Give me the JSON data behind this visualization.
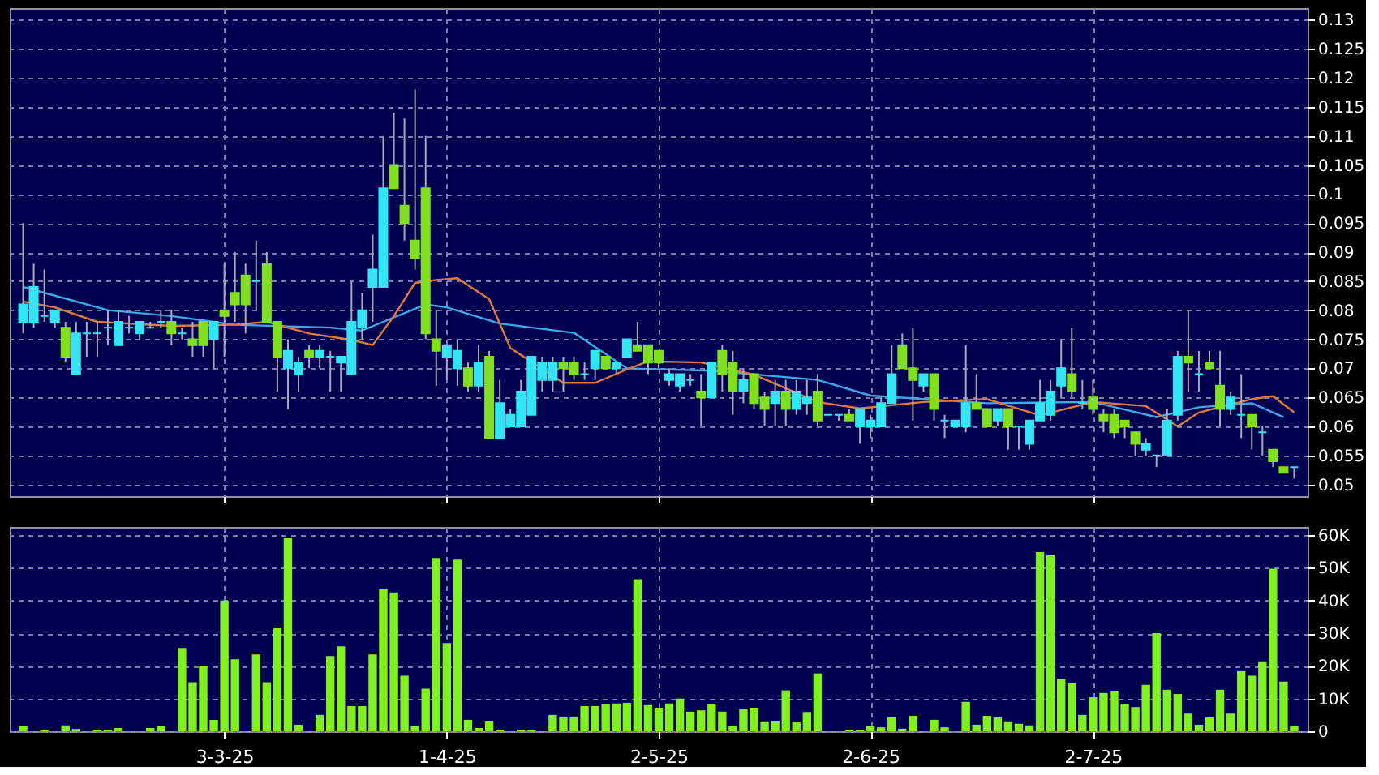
{
  "chart_data": [
    {
      "type": "candlestick",
      "categories": [
        null,
        null,
        null,
        null,
        null,
        null,
        null,
        null,
        null,
        null,
        null,
        null,
        null,
        null,
        null,
        null,
        null,
        null,
        null,
        null,
        null,
        null,
        null,
        null,
        null,
        null,
        null,
        null,
        null,
        null,
        null,
        null,
        null,
        null,
        null,
        null,
        null,
        null,
        null,
        null,
        null,
        null,
        null,
        null,
        null,
        null,
        null,
        null,
        null,
        null,
        null,
        null,
        null,
        null,
        null,
        null,
        null,
        null,
        null,
        null,
        null,
        null,
        null,
        null,
        null,
        null,
        null,
        null,
        null,
        null,
        null,
        null,
        null,
        null,
        null,
        null,
        null,
        null,
        null,
        null,
        null,
        null,
        null,
        null,
        null,
        null,
        null,
        null,
        null,
        null,
        null,
        null,
        null,
        null,
        null,
        null,
        null,
        null,
        null,
        null,
        null,
        null,
        null,
        null,
        null,
        null,
        null,
        null,
        null,
        null,
        null,
        null,
        null,
        null,
        null,
        null,
        null,
        null,
        null,
        null,
        null
      ],
      "ohlc": [
        [
          0.078,
          0.095,
          0.076,
          0.081
        ],
        [
          0.078,
          0.088,
          0.077,
          0.084
        ],
        [
          0.079,
          0.087,
          0.078,
          0.079
        ],
        [
          0.078,
          0.08,
          0.077,
          0.08
        ],
        [
          0.077,
          0.078,
          0.071,
          0.072
        ],
        [
          0.069,
          0.078,
          0.069,
          0.076
        ],
        [
          0.076,
          0.078,
          0.072,
          0.076
        ],
        [
          0.076,
          0.078,
          0.072,
          0.076
        ],
        [
          0.077,
          0.08,
          0.074,
          0.077
        ],
        [
          0.074,
          0.08,
          0.074,
          0.078
        ],
        [
          0.077,
          0.079,
          0.076,
          0.077
        ],
        [
          0.076,
          0.078,
          0.075,
          0.078
        ],
        [
          0.077,
          0.078,
          0.077,
          0.077
        ],
        [
          0.078,
          0.08,
          0.077,
          0.078
        ],
        [
          0.078,
          0.08,
          0.074,
          0.076
        ],
        [
          0.076,
          0.077,
          0.075,
          0.076
        ],
        [
          0.075,
          0.078,
          0.072,
          0.074
        ],
        [
          0.078,
          0.078,
          0.072,
          0.074
        ],
        [
          0.075,
          0.078,
          0.07,
          0.078
        ],
        [
          0.08,
          0.088,
          0.072,
          0.079
        ],
        [
          0.083,
          0.09,
          0.078,
          0.081
        ],
        [
          0.086,
          0.088,
          0.076,
          0.081
        ],
        [
          0.085,
          0.092,
          0.08,
          0.085
        ],
        [
          0.088,
          0.09,
          0.078,
          0.078
        ],
        [
          0.078,
          0.078,
          0.066,
          0.072
        ],
        [
          0.07,
          0.075,
          0.063,
          0.073
        ],
        [
          0.069,
          0.072,
          0.066,
          0.071
        ],
        [
          0.073,
          0.074,
          0.07,
          0.072
        ],
        [
          0.072,
          0.074,
          0.07,
          0.073
        ],
        [
          0.072,
          0.073,
          0.066,
          0.072
        ],
        [
          0.071,
          0.072,
          0.066,
          0.072
        ],
        [
          0.069,
          0.085,
          0.069,
          0.078
        ],
        [
          0.077,
          0.083,
          0.075,
          0.08
        ],
        [
          0.084,
          0.093,
          0.078,
          0.087
        ],
        [
          0.084,
          0.11,
          0.084,
          0.101
        ],
        [
          0.105,
          0.114,
          0.101,
          0.101
        ],
        [
          0.098,
          0.113,
          0.092,
          0.095
        ],
        [
          0.092,
          0.118,
          0.087,
          0.089
        ],
        [
          0.101,
          0.11,
          0.075,
          0.076
        ],
        [
          0.075,
          0.08,
          0.067,
          0.073
        ],
        [
          0.072,
          0.074,
          0.068,
          0.074
        ],
        [
          0.07,
          0.075,
          0.067,
          0.073
        ],
        [
          0.07,
          0.071,
          0.066,
          0.067
        ],
        [
          0.067,
          0.074,
          0.066,
          0.071
        ],
        [
          0.072,
          0.073,
          0.058,
          0.058
        ],
        [
          0.058,
          0.068,
          0.058,
          0.064
        ],
        [
          0.06,
          0.063,
          0.06,
          0.062
        ],
        [
          0.06,
          0.068,
          0.06,
          0.066
        ],
        [
          0.062,
          0.072,
          0.062,
          0.072
        ],
        [
          0.068,
          0.072,
          0.066,
          0.071
        ],
        [
          0.068,
          0.072,
          0.066,
          0.071
        ],
        [
          0.071,
          0.072,
          0.066,
          0.07
        ],
        [
          0.071,
          0.072,
          0.068,
          0.069
        ],
        [
          0.069,
          0.071,
          0.068,
          0.069
        ],
        [
          0.07,
          0.073,
          0.068,
          0.073
        ],
        [
          0.072,
          0.072,
          0.07,
          0.07
        ],
        [
          0.07,
          0.071,
          0.069,
          0.071
        ],
        [
          0.072,
          0.075,
          0.072,
          0.075
        ],
        [
          0.074,
          0.078,
          0.073,
          0.073
        ],
        [
          0.074,
          0.074,
          0.069,
          0.071
        ],
        [
          0.073,
          0.073,
          0.07,
          0.071
        ],
        [
          0.068,
          0.07,
          0.067,
          0.069
        ],
        [
          0.067,
          0.069,
          0.066,
          0.069
        ],
        [
          0.068,
          0.069,
          0.067,
          0.068
        ],
        [
          0.066,
          0.069,
          0.06,
          0.065
        ],
        [
          0.065,
          0.071,
          0.065,
          0.071
        ],
        [
          0.073,
          0.074,
          0.066,
          0.069
        ],
        [
          0.071,
          0.073,
          0.062,
          0.066
        ],
        [
          0.066,
          0.07,
          0.064,
          0.068
        ],
        [
          0.069,
          0.069,
          0.063,
          0.064
        ],
        [
          0.065,
          0.066,
          0.06,
          0.063
        ],
        [
          0.064,
          0.068,
          0.06,
          0.066
        ],
        [
          0.066,
          0.068,
          0.06,
          0.063
        ],
        [
          0.063,
          0.068,
          0.062,
          0.066
        ],
        [
          0.064,
          0.068,
          0.062,
          0.065
        ],
        [
          0.066,
          0.069,
          0.06,
          0.061
        ],
        [
          0.062,
          0.062,
          0.062,
          0.062
        ],
        [
          0.062,
          0.062,
          0.061,
          0.062
        ],
        [
          0.062,
          0.063,
          0.061,
          0.061
        ],
        [
          0.06,
          0.063,
          0.057,
          0.063
        ],
        [
          0.06,
          0.062,
          0.058,
          0.061
        ],
        [
          0.06,
          0.065,
          0.06,
          0.064
        ],
        [
          0.064,
          0.074,
          0.064,
          0.069
        ],
        [
          0.074,
          0.076,
          0.07,
          0.07
        ],
        [
          0.07,
          0.077,
          0.061,
          0.068
        ],
        [
          0.067,
          0.069,
          0.066,
          0.069
        ],
        [
          0.069,
          0.069,
          0.061,
          0.063
        ],
        [
          0.061,
          0.062,
          0.058,
          0.061
        ],
        [
          0.06,
          0.061,
          0.06,
          0.061
        ],
        [
          0.06,
          0.074,
          0.059,
          0.064
        ],
        [
          0.064,
          0.069,
          0.063,
          0.063
        ],
        [
          0.063,
          0.063,
          0.06,
          0.06
        ],
        [
          0.061,
          0.063,
          0.06,
          0.063
        ],
        [
          0.063,
          0.063,
          0.056,
          0.06
        ],
        [
          0.06,
          0.06,
          0.056,
          0.06
        ],
        [
          0.057,
          0.061,
          0.056,
          0.061
        ],
        [
          0.061,
          0.068,
          0.061,
          0.064
        ],
        [
          0.062,
          0.068,
          0.061,
          0.066
        ],
        [
          0.067,
          0.075,
          0.065,
          0.07
        ],
        [
          0.069,
          0.077,
          0.065,
          0.066
        ],
        [
          0.064,
          0.068,
          0.063,
          0.064
        ],
        [
          0.065,
          0.068,
          0.062,
          0.063
        ],
        [
          0.062,
          0.063,
          0.059,
          0.061
        ],
        [
          0.062,
          0.063,
          0.058,
          0.059
        ],
        [
          0.061,
          0.061,
          0.058,
          0.06
        ],
        [
          0.059,
          0.059,
          0.055,
          0.057
        ],
        [
          0.056,
          0.058,
          0.055,
          0.057
        ],
        [
          0.055,
          0.055,
          0.053,
          0.055
        ],
        [
          0.055,
          0.063,
          0.055,
          0.061
        ],
        [
          0.062,
          0.073,
          0.061,
          0.072
        ],
        [
          0.072,
          0.08,
          0.066,
          0.071
        ],
        [
          0.069,
          0.073,
          0.066,
          0.069
        ],
        [
          0.071,
          0.073,
          0.07,
          0.07
        ],
        [
          0.067,
          0.073,
          0.06,
          0.063
        ],
        [
          0.063,
          0.066,
          0.062,
          0.065
        ],
        [
          0.062,
          0.069,
          0.058,
          0.062
        ],
        [
          0.062,
          0.062,
          0.056,
          0.06
        ],
        [
          0.059,
          0.06,
          0.055,
          0.059
        ],
        [
          0.056,
          0.056,
          0.053,
          0.054
        ],
        [
          0.053,
          0.053,
          0.052,
          0.052
        ],
        [
          0.053,
          0.053,
          0.051,
          0.053
        ]
      ],
      "colors": [
        "#33e4f4",
        "#33e4f4",
        "#33e4f4",
        "#33e4f4",
        "#80e020",
        "#33e4f4",
        "#33e4f4",
        "#33e4f4",
        "#33e4f4",
        "#33e4f4",
        "#33e4f4",
        "#33e4f4",
        "#33e4f4",
        "#33e4f4",
        "#80e020",
        "#33e4f4",
        "#80e020",
        "#80e020",
        "#33e4f4",
        "#80e020",
        "#80e020",
        "#80e020",
        "#33e4f4",
        "#80e020",
        "#80e020",
        "#33e4f4",
        "#33e4f4",
        "#80e020",
        "#33e4f4",
        "#33e4f4",
        "#33e4f4",
        "#33e4f4",
        "#33e4f4",
        "#33e4f4",
        "#33e4f4",
        "#80e020",
        "#80e020",
        "#80e020",
        "#80e020",
        "#80e020",
        "#33e4f4",
        "#33e4f4",
        "#80e020",
        "#33e4f4",
        "#80e020",
        "#33e4f4",
        "#33e4f4",
        "#33e4f4",
        "#33e4f4",
        "#33e4f4",
        "#33e4f4",
        "#80e020",
        "#80e020",
        "#33e4f4",
        "#33e4f4",
        "#80e020",
        "#33e4f4",
        "#33e4f4",
        "#80e020",
        "#80e020",
        "#80e020",
        "#33e4f4",
        "#33e4f4",
        "#33e4f4",
        "#80e020",
        "#33e4f4",
        "#80e020",
        "#80e020",
        "#33e4f4",
        "#80e020",
        "#80e020",
        "#33e4f4",
        "#80e020",
        "#33e4f4",
        "#33e4f4",
        "#80e020",
        "#33e4f4",
        "#33e4f4",
        "#80e020",
        "#33e4f4",
        "#33e4f4",
        "#33e4f4",
        "#33e4f4",
        "#80e020",
        "#80e020",
        "#33e4f4",
        "#80e020",
        "#33e4f4",
        "#33e4f4",
        "#33e4f4",
        "#80e020",
        "#80e020",
        "#33e4f4",
        "#80e020",
        "#33e4f4",
        "#33e4f4",
        "#33e4f4",
        "#33e4f4",
        "#33e4f4",
        "#80e020",
        "#33e4f4",
        "#80e020",
        "#80e020",
        "#80e020",
        "#80e020",
        "#80e020",
        "#33e4f4",
        "#33e4f4",
        "#33e4f4",
        "#33e4f4",
        "#80e020",
        "#33e4f4",
        "#80e020",
        "#80e020",
        "#33e4f4",
        "#33e4f4",
        "#80e020",
        "#33e4f4",
        "#80e020",
        "#80e020",
        "#33e4f4"
      ],
      "series": [
        {
          "type": "line",
          "color": "#3da8e8",
          "values": [
            0.084,
            null,
            null,
            null,
            null,
            null,
            null,
            null,
            0.08,
            null,
            null,
            null,
            null,
            null,
            0.079,
            null,
            null,
            null,
            null,
            null,
            0.0775,
            null,
            null,
            null,
            null,
            null,
            null,
            null,
            null,
            0.077,
            null,
            null,
            0.0765,
            null,
            null,
            null,
            null,
            null,
            0.081,
            null,
            0.0805,
            null,
            null,
            null,
            null,
            0.0777,
            null,
            null,
            null,
            null,
            null,
            null,
            0.0761,
            null,
            null,
            null,
            null,
            0.07,
            null,
            null,
            null,
            null,
            null,
            null,
            null,
            0.0696,
            null,
            null,
            null,
            null,
            null,
            null,
            null,
            null,
            null,
            0.068,
            null,
            null,
            null,
            null,
            0.0653,
            null,
            null,
            null,
            null,
            null,
            null,
            null,
            null,
            null,
            null,
            0.064,
            null,
            null,
            null,
            null,
            null,
            null,
            null,
            null,
            null,
            0.0642,
            null,
            null,
            null,
            null,
            null,
            0.0616,
            null,
            null,
            null,
            0.0633,
            null,
            null,
            null,
            null,
            0.064,
            null,
            null,
            0.0616,
            null
          ]
        },
        {
          "type": "line",
          "color": "#e07840",
          "values": [
            0.0815,
            null,
            null,
            0.0805,
            null,
            null,
            null,
            0.078,
            null,
            null,
            null,
            null,
            null,
            null,
            0.0773,
            null,
            null,
            null,
            null,
            null,
            0.0775,
            null,
            null,
            0.078,
            null,
            null,
            null,
            0.076,
            null,
            null,
            null,
            0.0749,
            null,
            0.074,
            null,
            0.079,
            null,
            0.0847,
            null,
            0.0852,
            null,
            0.0855,
            null,
            null,
            0.0819,
            null,
            0.0735,
            null,
            null,
            null,
            null,
            0.0675,
            null,
            null,
            0.0675,
            null,
            null,
            0.0698,
            null,
            0.0712,
            null,
            null,
            null,
            null,
            0.071,
            null,
            null,
            null,
            null,
            0.0689,
            null,
            null,
            null,
            null,
            null,
            0.0642,
            null,
            null,
            null,
            0.0631,
            null,
            null,
            null,
            null,
            null,
            0.0642,
            null,
            null,
            null,
            null,
            null,
            0.0647,
            null,
            null,
            null,
            null,
            0.0619,
            null,
            null,
            null,
            null,
            0.0642,
            null,
            null,
            null,
            null,
            0.0635,
            null,
            null,
            0.06,
            null,
            0.0624,
            null,
            null,
            null,
            null,
            0.0647,
            null,
            0.0652,
            null,
            0.0624
          ]
        }
      ],
      "ylim": [
        0.048,
        0.132
      ],
      "yticks": [
        0.05,
        0.055,
        0.06,
        0.065,
        0.07,
        0.075,
        0.08,
        0.085,
        0.09,
        0.095,
        0.1,
        0.105,
        0.11,
        0.115,
        0.12,
        0.125,
        0.13
      ],
      "grid": true,
      "tick_labels": "y"
    },
    {
      "type": "bar",
      "color": "#80f020",
      "categories": [
        null,
        null,
        null,
        null,
        null,
        null,
        null,
        null,
        null,
        null,
        null,
        null,
        null,
        null,
        null,
        null,
        null,
        null,
        null,
        "3-3-25",
        null,
        null,
        null,
        null,
        null,
        null,
        null,
        null,
        null,
        null,
        null,
        null,
        null,
        null,
        null,
        null,
        null,
        null,
        null,
        null,
        "1-4-25",
        null,
        null,
        null,
        null,
        null,
        null,
        null,
        null,
        null,
        null,
        null,
        null,
        null,
        null,
        null,
        null,
        null,
        null,
        null,
        "2-5-25",
        null,
        null,
        null,
        null,
        null,
        null,
        null,
        null,
        null,
        null,
        null,
        null,
        null,
        null,
        null,
        null,
        null,
        null,
        null,
        "2-6-25",
        null,
        null,
        null,
        null,
        null,
        null,
        null,
        null,
        null,
        null,
        null,
        null,
        null,
        null,
        null,
        null,
        null,
        null,
        null,
        null,
        "2-7-25",
        null,
        null,
        null,
        null,
        null,
        null,
        null,
        null,
        null,
        null,
        null,
        null,
        null,
        null,
        null,
        null,
        null,
        null,
        null
      ],
      "values": [
        1500,
        0,
        500,
        0,
        1800,
        700,
        0,
        500,
        500,
        1000,
        0,
        0,
        1000,
        1500,
        0,
        25500,
        15000,
        20000,
        3500,
        40000,
        22000,
        0,
        23500,
        15000,
        31500,
        59000,
        2000,
        0,
        5000,
        23000,
        26000,
        7700,
        7700,
        23500,
        43500,
        42500,
        17000,
        1500,
        13000,
        53000,
        27000,
        52500,
        3500,
        1000,
        3000,
        500,
        0,
        500,
        500,
        0,
        5000,
        4500,
        4500,
        7700,
        7700,
        8300,
        8500,
        8700,
        46500,
        8000,
        7200,
        8500,
        10000,
        6000,
        6400,
        8400,
        6000,
        1500,
        6900,
        7200,
        2800,
        3200,
        12500,
        2700,
        5900,
        17700,
        0,
        0,
        300,
        300,
        1500,
        1200,
        4300,
        800,
        4700,
        0,
        3500,
        1200,
        0,
        9000,
        2000,
        4700,
        4200,
        2800,
        2300,
        1800,
        54800,
        53800,
        16000,
        14700,
        5000,
        10400,
        11700,
        12400,
        8400,
        7400,
        14200,
        30000,
        12700,
        11400,
        5400,
        2000,
        4300,
        12700,
        5400,
        18400,
        17000,
        21400,
        49700,
        15200,
        1500
      ],
      "ylim": [
        0,
        62500
      ],
      "yticks": [
        {
          "value": 0,
          "label": "0"
        },
        {
          "value": 10000,
          "label": "10K"
        },
        {
          "value": 20000,
          "label": "20K"
        },
        {
          "value": 30000,
          "label": "30K"
        },
        {
          "value": 40000,
          "label": "40K"
        },
        {
          "value": 50000,
          "label": "50K"
        },
        {
          "value": 60000,
          "label": "60K"
        }
      ],
      "grid": true
    }
  ]
}
